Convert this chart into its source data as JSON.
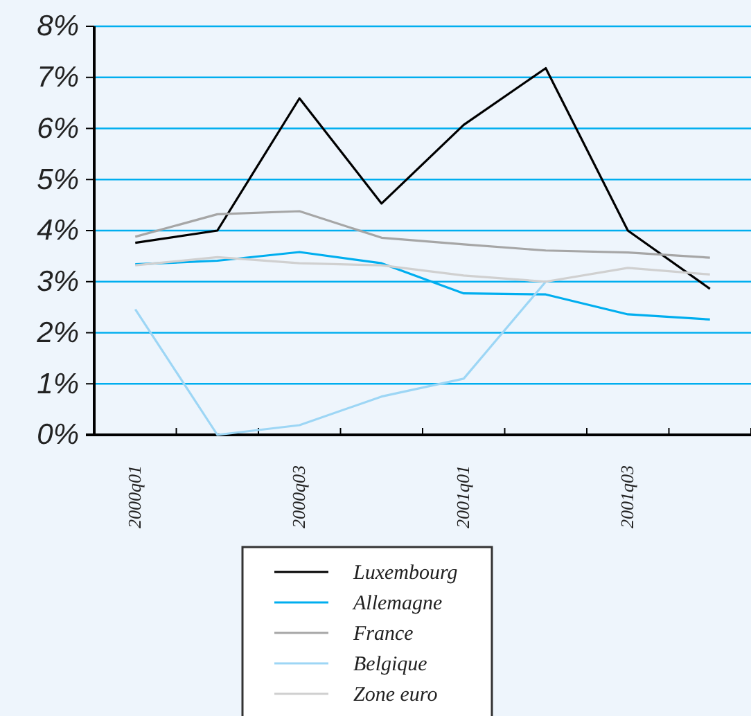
{
  "chart_data": {
    "type": "line",
    "categories": [
      "2000q01",
      null,
      "2000q03",
      null,
      "2001q01",
      null,
      "2001q03",
      null
    ],
    "series": [
      {
        "name": "Luxembourg",
        "color": "#000000",
        "values": [
          3.76,
          4.0,
          6.59,
          4.53,
          6.07,
          7.18,
          4.0,
          2.86
        ]
      },
      {
        "name": "Allemagne",
        "color": "#00aeef",
        "values": [
          3.34,
          3.41,
          3.58,
          3.36,
          2.77,
          2.75,
          2.36,
          2.26
        ]
      },
      {
        "name": "France",
        "color": "#a6a6a6",
        "values": [
          3.88,
          4.32,
          4.38,
          3.86,
          3.73,
          3.61,
          3.57,
          3.47
        ]
      },
      {
        "name": "Belgique",
        "color": "#9dd6f5",
        "values": [
          2.46,
          0,
          0.19,
          0.75,
          1.1,
          3.0,
          null,
          null
        ]
      },
      {
        "name": "Zone euro",
        "color": "#d0d0d0",
        "values": [
          3.32,
          3.48,
          3.36,
          3.32,
          3.12,
          3.0,
          3.27,
          3.14
        ]
      }
    ],
    "ylim": [
      0,
      8
    ],
    "yticks": [
      {
        "value": 0,
        "label": "0%"
      },
      {
        "value": 1,
        "label": "1%"
      },
      {
        "value": 2,
        "label": "2%"
      },
      {
        "value": 3,
        "label": "3%"
      },
      {
        "value": 4,
        "label": "4%"
      },
      {
        "value": 5,
        "label": "5%"
      },
      {
        "value": 6,
        "label": "6%"
      },
      {
        "value": 7,
        "label": "7%"
      },
      {
        "value": 8,
        "label": "8%"
      }
    ],
    "grid": "y",
    "legend": "bottom",
    "line_style": "solid",
    "marker": "none"
  }
}
